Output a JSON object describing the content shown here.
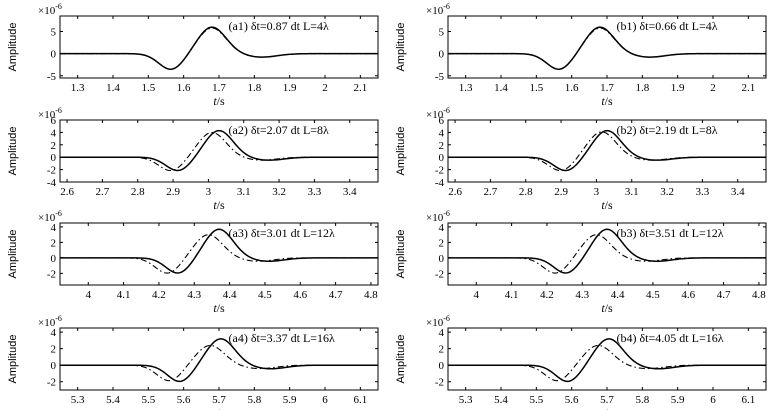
{
  "figure": {
    "y_label": "Amplitude",
    "x_label": "t/s",
    "exponent": "×10",
    "exponent_power": "-6"
  },
  "chart_data": [
    {
      "panel": "a1",
      "type": "line",
      "label": "(a1)",
      "annotation": "δt=0.87 dt  L=4λ",
      "xlim": [
        1.25,
        2.15
      ],
      "ylim": [
        -5.5,
        8.5
      ],
      "xticks": [
        "1.3",
        "1.4",
        "1.5",
        "1.6",
        "1.7",
        "1.8",
        "1.9",
        "2",
        "2.1"
      ],
      "yticks": [
        "-5",
        "0",
        "5"
      ],
      "series": [
        {
          "style": "solid",
          "center": 1.68,
          "peak": 6.0,
          "trough": -3.6,
          "width": 0.09
        },
        {
          "style": "dash-dot",
          "center": 1.68,
          "peak": 5.8,
          "trough": -3.6,
          "width": 0.09
        }
      ]
    },
    {
      "panel": "b1",
      "type": "line",
      "label": "(b1)",
      "annotation": "δt=0.66 dt  L=4λ",
      "xlim": [
        1.25,
        2.15
      ],
      "ylim": [
        -5.5,
        8.5
      ],
      "xticks": [
        "1.3",
        "1.4",
        "1.5",
        "1.6",
        "1.7",
        "1.8",
        "1.9",
        "2",
        "2.1"
      ],
      "yticks": [
        "-5",
        "0",
        "5"
      ],
      "series": [
        {
          "style": "solid",
          "center": 1.68,
          "peak": 6.0,
          "trough": -3.6,
          "width": 0.09
        },
        {
          "style": "dash-dot",
          "center": 1.68,
          "peak": 5.8,
          "trough": -3.6,
          "width": 0.09
        }
      ]
    },
    {
      "panel": "a2",
      "type": "line",
      "label": "(a2)",
      "annotation": "δt=2.07 dt  L=8λ",
      "xlim": [
        2.58,
        3.48
      ],
      "ylim": [
        -4,
        6
      ],
      "xticks": [
        "2.6",
        "2.7",
        "2.8",
        "2.9",
        "3",
        "3.1",
        "3.2",
        "3.3",
        "3.4"
      ],
      "yticks": [
        "-4",
        "-2",
        "0",
        "2",
        "4",
        "6"
      ],
      "series": [
        {
          "style": "solid",
          "center": 3.03,
          "peak": 4.3,
          "trough": -2.2,
          "width": 0.09
        },
        {
          "style": "dash-dot",
          "center": 3.01,
          "peak": 4.0,
          "trough": -2.2,
          "width": 0.09
        }
      ]
    },
    {
      "panel": "b2",
      "type": "line",
      "label": "(b2)",
      "annotation": "δt=2.19 dt  L=8λ",
      "xlim": [
        2.58,
        3.48
      ],
      "ylim": [
        -4,
        6
      ],
      "xticks": [
        "2.6",
        "2.7",
        "2.8",
        "2.9",
        "3",
        "3.1",
        "3.2",
        "3.3",
        "3.4"
      ],
      "yticks": [
        "-4",
        "-2",
        "0",
        "2",
        "4",
        "6"
      ],
      "series": [
        {
          "style": "solid",
          "center": 3.03,
          "peak": 4.3,
          "trough": -2.2,
          "width": 0.09
        },
        {
          "style": "dash-dot",
          "center": 3.015,
          "peak": 4.1,
          "trough": -2.2,
          "width": 0.09
        }
      ]
    },
    {
      "panel": "a3",
      "type": "line",
      "label": "(a3)",
      "annotation": "δt=3.01 dt  L=12λ",
      "xlim": [
        3.92,
        4.82
      ],
      "ylim": [
        -3.5,
        4.5
      ],
      "xticks": [
        "4",
        "4.1",
        "4.2",
        "4.3",
        "4.4",
        "4.5",
        "4.6",
        "4.7",
        "4.8"
      ],
      "yticks": [
        "-2",
        "0",
        "2",
        "4"
      ],
      "series": [
        {
          "style": "solid",
          "center": 4.37,
          "peak": 3.7,
          "trough": -2.0,
          "width": 0.09
        },
        {
          "style": "dash-dot",
          "center": 4.34,
          "peak": 3.0,
          "trough": -2.0,
          "width": 0.09
        }
      ]
    },
    {
      "panel": "b3",
      "type": "line",
      "label": "(b3)",
      "annotation": "δt=3.51 dt  L=12λ",
      "xlim": [
        3.92,
        4.82
      ],
      "ylim": [
        -3.5,
        4.5
      ],
      "xticks": [
        "4",
        "4.1",
        "4.2",
        "4.3",
        "4.4",
        "4.5",
        "4.6",
        "4.7",
        "4.8"
      ],
      "yticks": [
        "-2",
        "0",
        "2",
        "4"
      ],
      "series": [
        {
          "style": "solid",
          "center": 4.37,
          "peak": 3.7,
          "trough": -2.0,
          "width": 0.09
        },
        {
          "style": "dash-dot",
          "center": 4.34,
          "peak": 3.0,
          "trough": -2.0,
          "width": 0.09
        }
      ]
    },
    {
      "panel": "a4",
      "type": "line",
      "label": "(a4)",
      "annotation": "δt=3.37 dt  L=16λ",
      "xlim": [
        5.25,
        6.15
      ],
      "ylim": [
        -3,
        4.5
      ],
      "xticks": [
        "5.3",
        "5.4",
        "5.5",
        "5.6",
        "5.7",
        "5.8",
        "5.9",
        "6",
        "6.1"
      ],
      "yticks": [
        "-2",
        "0",
        "2",
        "4"
      ],
      "series": [
        {
          "style": "solid",
          "center": 5.705,
          "peak": 3.2,
          "trough": -2.0,
          "width": 0.09
        },
        {
          "style": "dash-dot",
          "center": 5.675,
          "peak": 2.4,
          "trough": -1.9,
          "width": 0.09
        }
      ]
    },
    {
      "panel": "b4",
      "type": "line",
      "label": "(b4)",
      "annotation": "δt=4.05 dt  L=16λ",
      "xlim": [
        5.25,
        6.15
      ],
      "ylim": [
        -3,
        4.5
      ],
      "xticks": [
        "5.3",
        "5.4",
        "5.5",
        "5.6",
        "5.7",
        "5.8",
        "5.9",
        "6",
        "6.1"
      ],
      "yticks": [
        "-2",
        "0",
        "2",
        "4"
      ],
      "series": [
        {
          "style": "solid",
          "center": 5.705,
          "peak": 3.2,
          "trough": -2.0,
          "width": 0.09
        },
        {
          "style": "dash-dot",
          "center": 5.675,
          "peak": 2.4,
          "trough": -1.9,
          "width": 0.09
        }
      ]
    }
  ]
}
